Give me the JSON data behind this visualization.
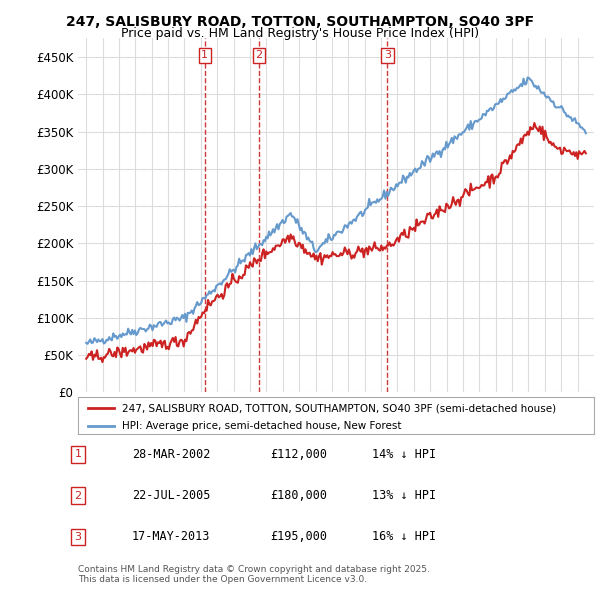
{
  "title1": "247, SALISBURY ROAD, TOTTON, SOUTHAMPTON, SO40 3PF",
  "title2": "Price paid vs. HM Land Registry's House Price Index (HPI)",
  "ylabel_ticks": [
    "£0",
    "£50K",
    "£100K",
    "£150K",
    "£200K",
    "£250K",
    "£300K",
    "£350K",
    "£400K",
    "£450K"
  ],
  "ytick_values": [
    0,
    50000,
    100000,
    150000,
    200000,
    250000,
    300000,
    350000,
    400000,
    450000
  ],
  "ylim": [
    0,
    475000
  ],
  "hpi_color": "#6699cc",
  "price_color": "#cc2222",
  "sale_marker_color": "#cc2222",
  "sales": [
    {
      "date_num": 2002.24,
      "price": 112000,
      "label": "1"
    },
    {
      "date_num": 2005.55,
      "price": 180000,
      "label": "2"
    },
    {
      "date_num": 2013.38,
      "price": 195000,
      "label": "3"
    }
  ],
  "legend_label_price": "247, SALISBURY ROAD, TOTTON, SOUTHAMPTON, SO40 3PF (semi-detached house)",
  "legend_label_hpi": "HPI: Average price, semi-detached house, New Forest",
  "table_rows": [
    {
      "num": "1",
      "date": "28-MAR-2002",
      "price": "£112,000",
      "pct": "14% ↓ HPI"
    },
    {
      "num": "2",
      "date": "22-JUL-2005",
      "price": "£180,000",
      "pct": "13% ↓ HPI"
    },
    {
      "num": "3",
      "date": "17-MAY-2013",
      "price": "£195,000",
      "pct": "16% ↓ HPI"
    }
  ],
  "footnote": "Contains HM Land Registry data © Crown copyright and database right 2025.\nThis data is licensed under the Open Government Licence v3.0.",
  "bg_color": "#ffffff",
  "plot_bg_color": "#ffffff",
  "grid_color": "#dddddd"
}
